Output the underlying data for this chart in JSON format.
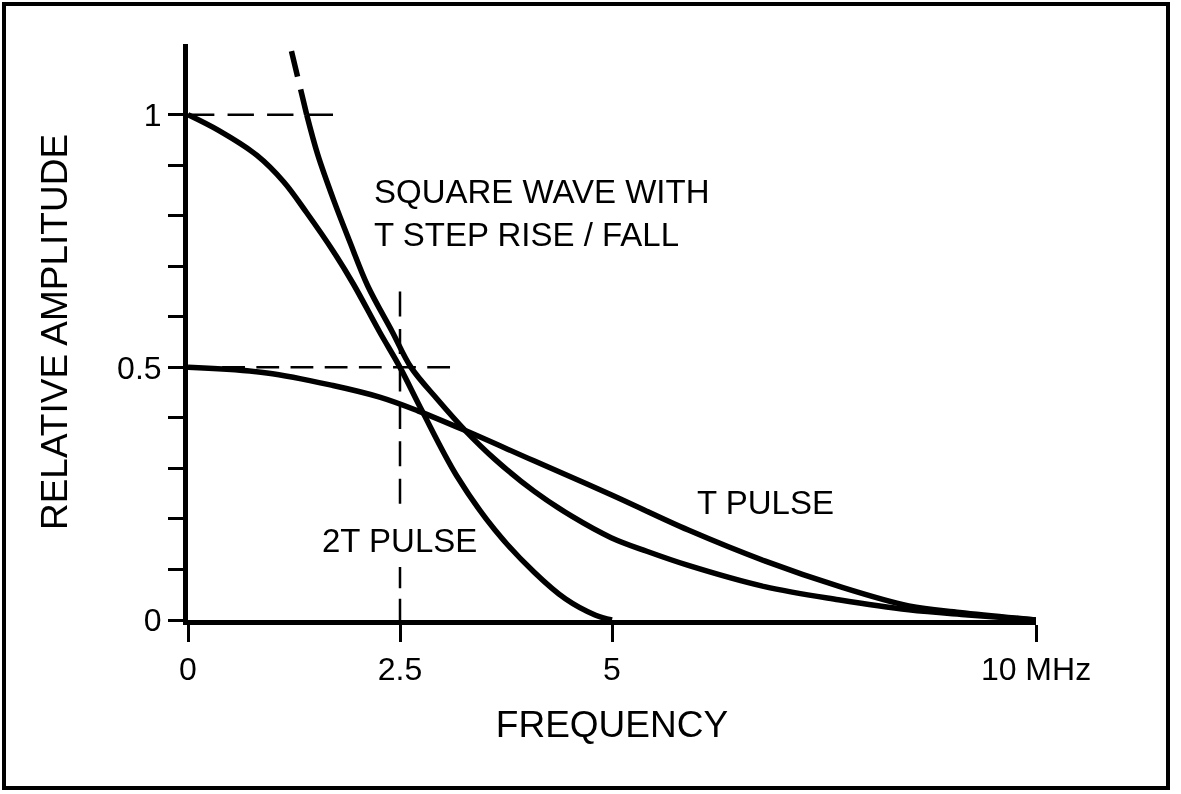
{
  "chart_data": {
    "type": "line",
    "xlabel": "FREQUENCY",
    "ylabel": "RELATIVE AMPLITUDE",
    "xlim": [
      0,
      10
    ],
    "xticks": [
      0,
      2.5,
      5,
      {
        "value": 10,
        "label": "10 MHz"
      }
    ],
    "ylim": [
      0,
      1.14
    ],
    "yticks": [
      0,
      {
        "value": 0.1,
        "label": null
      },
      {
        "value": 0.2,
        "label": null
      },
      {
        "value": 0.3,
        "label": null
      },
      {
        "value": 0.4,
        "label": null
      },
      0.5,
      {
        "value": 0.6,
        "label": null
      },
      {
        "value": 0.7,
        "label": null
      },
      {
        "value": 0.8,
        "label": null
      },
      {
        "value": 0.9,
        "label": null
      },
      1
    ],
    "grid": false,
    "legend": false,
    "marker": "none",
    "line_style": "solid",
    "series": [
      {
        "name": "2T PULSE",
        "color": "#000000",
        "x": [
          0,
          0.36,
          0.81,
          1.13,
          1.4,
          1.72,
          1.95,
          2.26,
          2.5,
          2.76,
          3.17,
          3.62,
          4.08,
          4.45,
          4.8,
          5
        ],
        "values": [
          1,
          0.969,
          0.92,
          0.867,
          0.806,
          0.728,
          0.665,
          0.57,
          0.5,
          0.414,
          0.285,
          0.178,
          0.095,
          0.042,
          0.01,
          0
        ]
      },
      {
        "name": "T PULSE",
        "color": "#000000",
        "x": [
          0,
          0.93,
          1.71,
          2.26,
          2.71,
          3.27,
          4.08,
          4.99,
          5.9,
          6.8,
          7.67,
          8.5,
          9.1,
          10
        ],
        "values": [
          0.5,
          0.489,
          0.464,
          0.441,
          0.414,
          0.375,
          0.315,
          0.248,
          0.178,
          0.117,
          0.067,
          0.028,
          0.015,
          0
        ]
      },
      {
        "name": "SQUARE WAVE WITH\nT STEP RISE / FALL",
        "color": "#000000",
        "x": [
          1.4,
          1.53,
          1.72,
          1.9,
          2.12,
          2.41,
          2.63,
          2.94,
          3.27,
          3.62,
          4.08,
          4.53,
          4.99,
          5.41,
          5.9,
          6.8,
          7.67,
          8.5,
          9.2,
          10
        ],
        "values": [
          1,
          0.921,
          0.83,
          0.752,
          0.661,
          0.57,
          0.5,
          0.437,
          0.375,
          0.318,
          0.255,
          0.205,
          0.163,
          0.136,
          0.108,
          0.066,
          0.04,
          0.02,
          0.01,
          0
        ]
      },
      {
        "color": "#000000",
        "line_style": "dashed",
        "x": [
          1.22,
          1.4
        ],
        "values": [
          1.126,
          1
        ]
      },
      {
        "color": "#000000",
        "line_style": "dashed",
        "x": [
          0,
          1.71
        ],
        "values": [
          1,
          1
        ]
      },
      {
        "color": "#000000",
        "line_style": "dashed",
        "x": [
          0,
          3.09
        ],
        "values": [
          0.5,
          0.5
        ]
      },
      {
        "color": "#000000",
        "line_style": "dashed",
        "x": [
          2.5,
          2.5
        ],
        "values": [
          0.23,
          0.65
        ]
      },
      {
        "color": "#000000",
        "line_style": "dashed",
        "x": [
          2.5,
          2.5
        ],
        "values": [
          0,
          0.105
        ]
      }
    ]
  }
}
